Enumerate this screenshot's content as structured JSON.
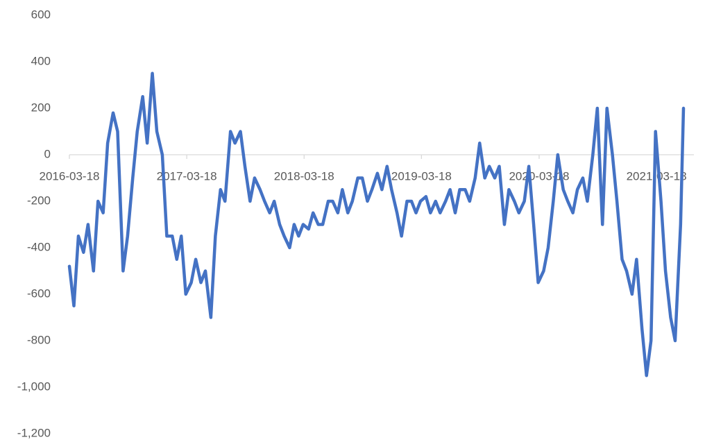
{
  "chart_data": {
    "type": "line",
    "color": "#4472c4",
    "x": [
      "2016-03-18",
      "2016-04-01",
      "2016-04-15",
      "2016-05-01",
      "2016-05-15",
      "2016-06-01",
      "2016-06-15",
      "2016-07-01",
      "2016-07-15",
      "2016-08-01",
      "2016-08-15",
      "2016-09-01",
      "2016-09-15",
      "2016-10-01",
      "2016-10-15",
      "2016-11-01",
      "2016-11-15",
      "2016-12-01",
      "2016-12-15",
      "2017-01-01",
      "2017-01-15",
      "2017-02-01",
      "2017-02-15",
      "2017-03-01",
      "2017-03-15",
      "2017-04-01",
      "2017-04-15",
      "2017-05-01",
      "2017-05-15",
      "2017-06-01",
      "2017-06-15",
      "2017-07-01",
      "2017-07-15",
      "2017-08-01",
      "2017-08-15",
      "2017-09-01",
      "2017-09-15",
      "2017-10-01",
      "2017-10-15",
      "2017-11-01",
      "2017-11-15",
      "2017-12-01",
      "2017-12-15",
      "2018-01-01",
      "2018-01-15",
      "2018-02-01",
      "2018-02-15",
      "2018-03-01",
      "2018-03-15",
      "2018-04-01",
      "2018-04-15",
      "2018-05-01",
      "2018-05-15",
      "2018-06-01",
      "2018-06-15",
      "2018-07-01",
      "2018-07-15",
      "2018-08-01",
      "2018-08-15",
      "2018-09-01",
      "2018-09-15",
      "2018-10-01",
      "2018-10-15",
      "2018-11-01",
      "2018-11-15",
      "2018-12-01",
      "2018-12-15",
      "2019-01-01",
      "2019-01-15",
      "2019-02-01",
      "2019-02-15",
      "2019-03-01",
      "2019-03-15",
      "2019-04-01",
      "2019-04-15",
      "2019-05-01",
      "2019-05-15",
      "2019-06-01",
      "2019-06-15",
      "2019-07-01",
      "2019-07-15",
      "2019-08-01",
      "2019-08-15",
      "2019-09-01",
      "2019-09-15",
      "2019-10-01",
      "2019-10-15",
      "2019-11-01",
      "2019-11-15",
      "2019-12-01",
      "2019-12-15",
      "2020-01-01",
      "2020-01-15",
      "2020-02-01",
      "2020-02-15",
      "2020-03-01",
      "2020-03-15",
      "2020-04-01",
      "2020-04-15",
      "2020-05-01",
      "2020-05-15",
      "2020-06-01",
      "2020-06-15",
      "2020-07-01",
      "2020-07-15",
      "2020-08-01",
      "2020-08-15",
      "2020-09-01",
      "2020-09-15",
      "2020-10-01",
      "2020-10-15",
      "2020-11-01",
      "2020-11-15",
      "2020-12-01",
      "2020-12-15",
      "2021-01-01",
      "2021-01-15",
      "2021-02-01",
      "2021-02-15",
      "2021-03-01",
      "2021-03-15",
      "2021-04-01",
      "2021-04-15",
      "2021-05-01",
      "2021-05-15",
      "2021-06-01",
      "2021-06-10"
    ],
    "values": [
      -480,
      -650,
      -350,
      -420,
      -300,
      -500,
      -200,
      -250,
      50,
      180,
      100,
      -500,
      -350,
      -100,
      100,
      250,
      50,
      350,
      100,
      0,
      -350,
      -350,
      -450,
      -350,
      -600,
      -550,
      -450,
      -550,
      -500,
      -700,
      -350,
      -150,
      -200,
      100,
      50,
      100,
      -50,
      -200,
      -100,
      -150,
      -200,
      -250,
      -200,
      -300,
      -350,
      -400,
      -300,
      -350,
      -300,
      -320,
      -250,
      -300,
      -300,
      -200,
      -200,
      -250,
      -150,
      -250,
      -200,
      -100,
      -100,
      -200,
      -150,
      -80,
      -150,
      -50,
      -150,
      -250,
      -350,
      -200,
      -200,
      -250,
      -200,
      -180,
      -250,
      -200,
      -250,
      -200,
      -150,
      -250,
      -150,
      -150,
      -200,
      -100,
      50,
      -100,
      -50,
      -100,
      -50,
      -300,
      -150,
      -200,
      -250,
      -200,
      -50,
      -300,
      -550,
      -500,
      -400,
      -200,
      0,
      -150,
      -200,
      -250,
      -150,
      -100,
      -200,
      0,
      200,
      -300,
      200,
      0,
      -200,
      -450,
      -500,
      -600,
      -450,
      -750,
      -950,
      -800,
      100,
      -200,
      -500,
      -700,
      -800,
      -300,
      200
    ],
    "xlim": [
      "2016-03-18",
      "2021-06-10"
    ],
    "xticks": [
      "2016-03-18",
      "2017-03-18",
      "2018-03-18",
      "2019-03-18",
      "2020-03-18",
      "2021-03-18"
    ],
    "ylim": [
      -1200,
      600
    ],
    "yticks": [
      600,
      400,
      200,
      0,
      -200,
      -400,
      -600,
      -800,
      {
        "value": -1000,
        "label": "-1,000"
      },
      {
        "value": -1200,
        "label": "-1,200"
      }
    ]
  }
}
